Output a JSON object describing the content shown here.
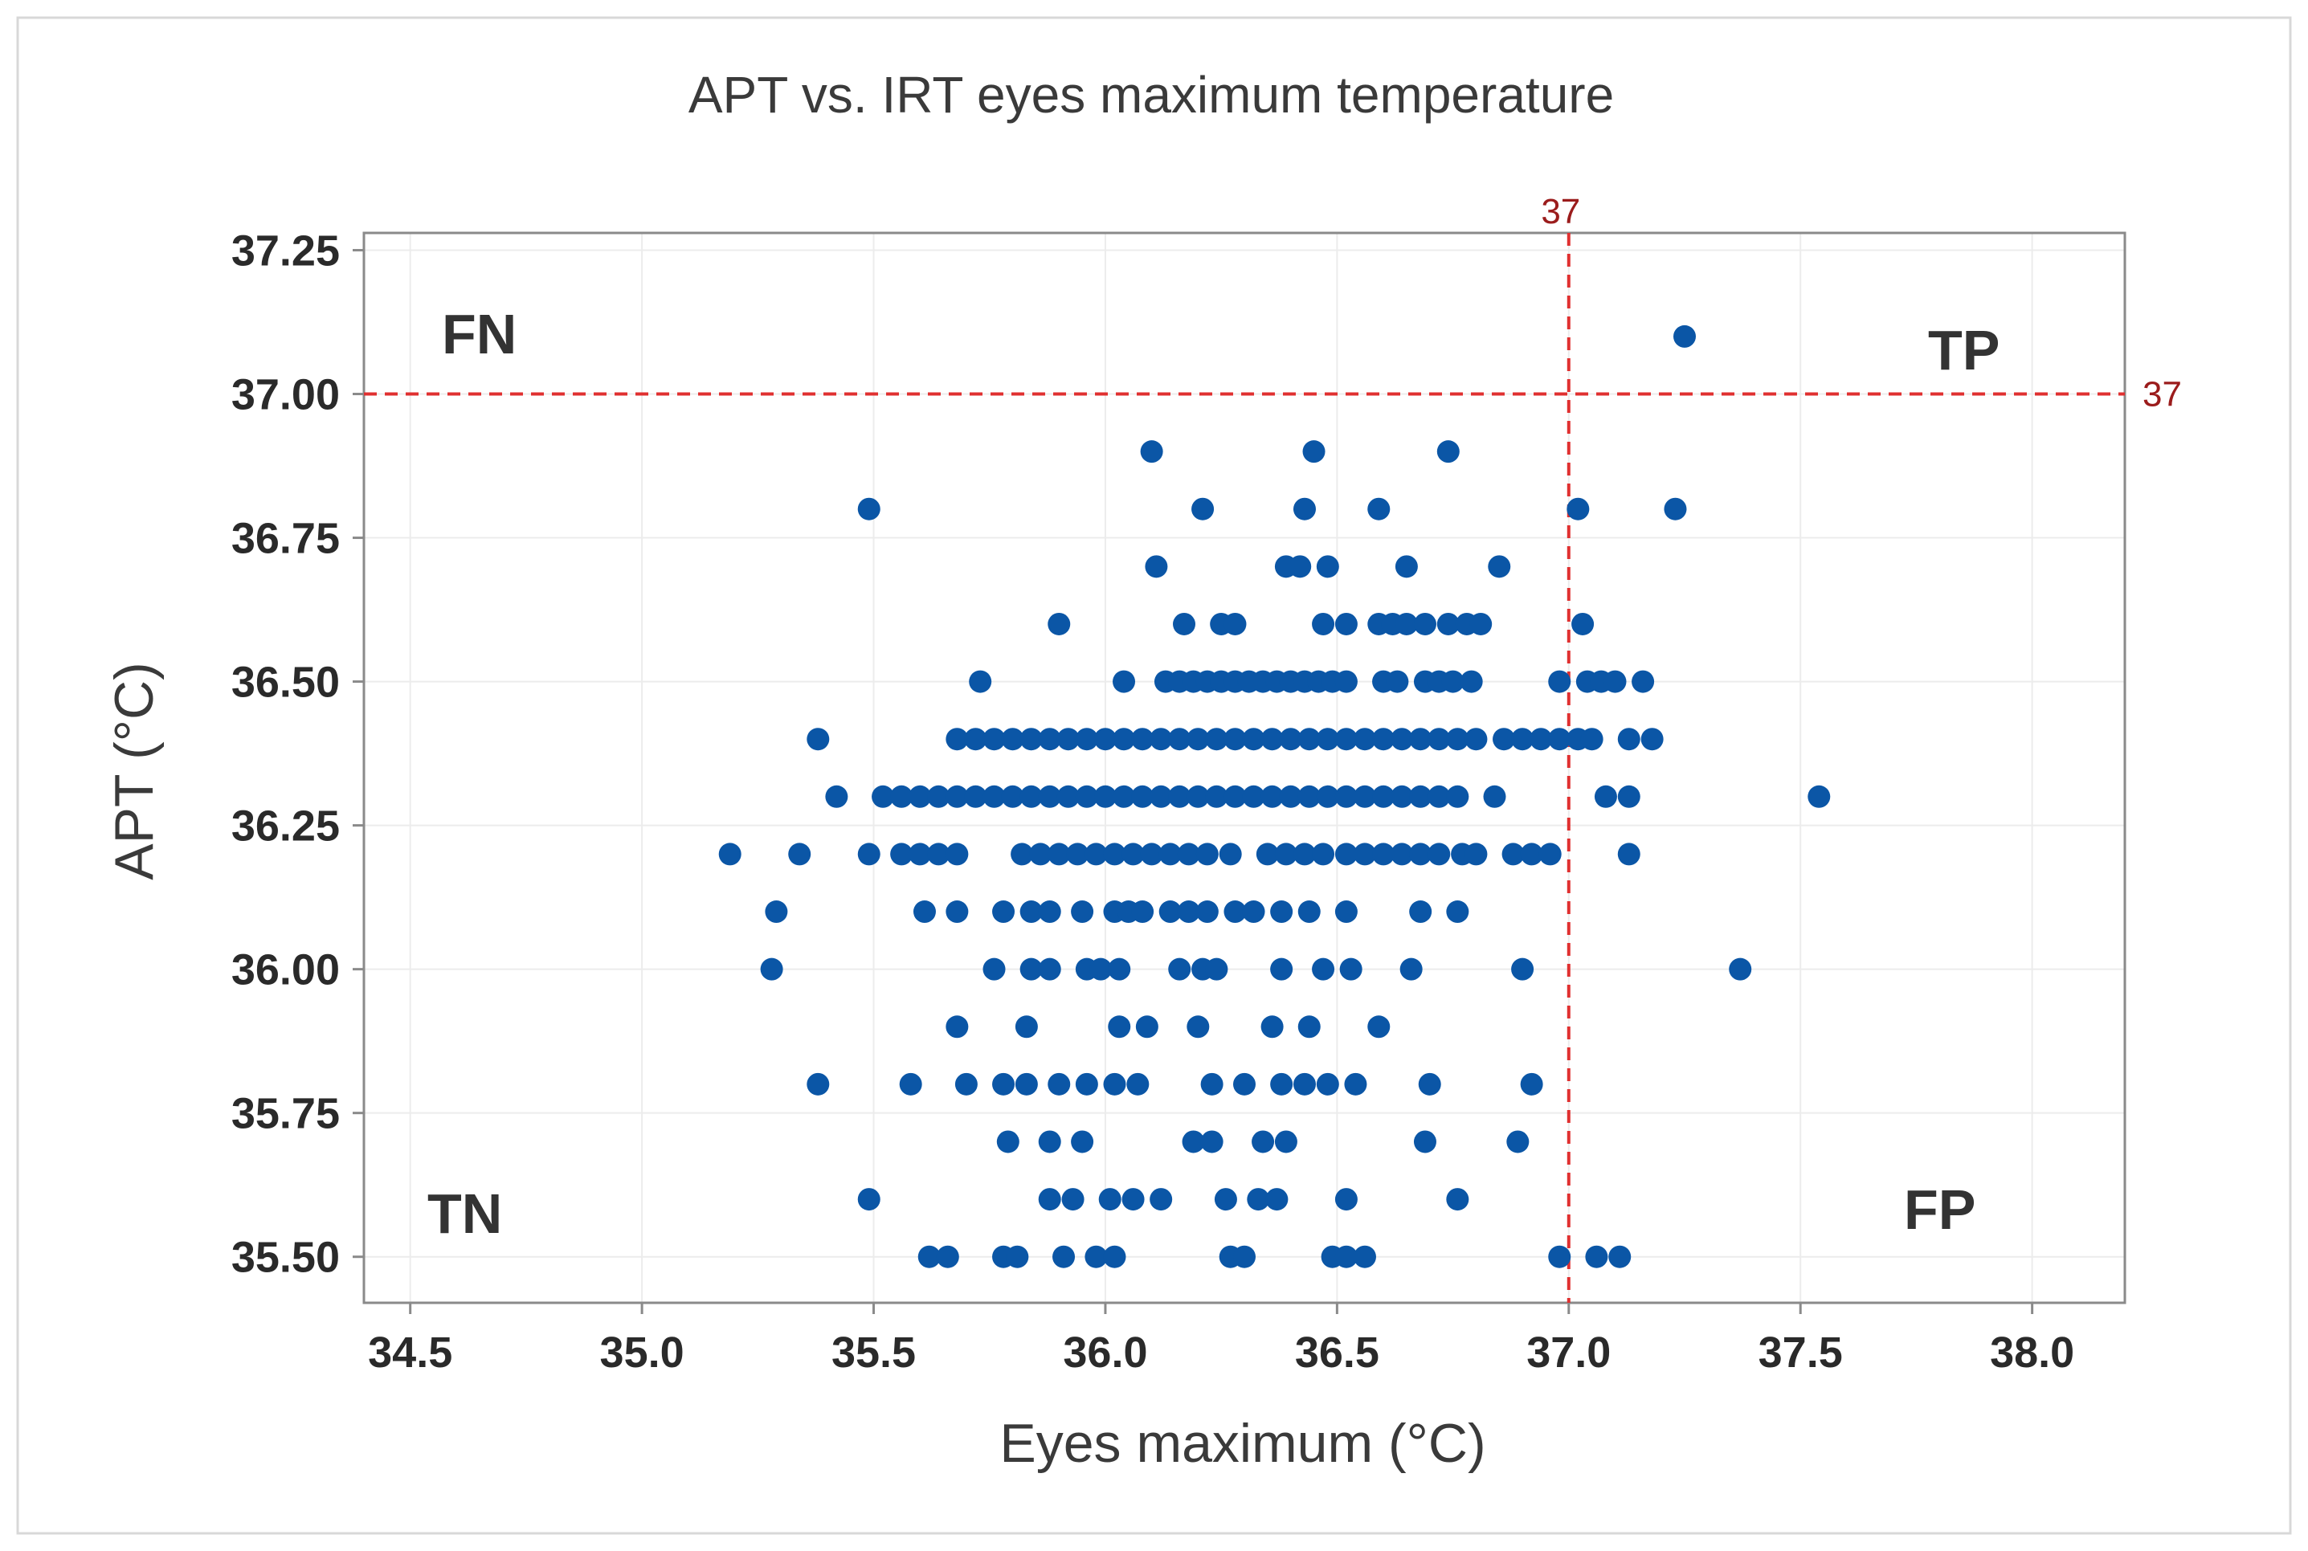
{
  "chart_data": {
    "type": "scatter",
    "title": "APT vs. IRT eyes maximum temperature",
    "xlabel": "Eyes maximum  (°C)",
    "ylabel": "APT (°C)",
    "xlim": [
      34.4,
      38.2
    ],
    "ylim": [
      35.42,
      37.28
    ],
    "x_ticks": [
      34.5,
      35.0,
      35.5,
      36.0,
      36.5,
      37.0,
      37.5,
      38.0
    ],
    "x_tick_labels": [
      "34.5",
      "35.0",
      "35.5",
      "36.0",
      "36.5",
      "37.0",
      "37.5",
      "38.0"
    ],
    "y_ticks": [
      35.5,
      35.75,
      36.0,
      36.25,
      36.5,
      36.75,
      37.0,
      37.25
    ],
    "y_tick_labels": [
      "35.50",
      "35.75",
      "36.00",
      "36.25",
      "36.50",
      "36.75",
      "37.00",
      "37.25"
    ],
    "grid": true,
    "reference_lines": [
      {
        "axis": "x",
        "value": 37,
        "label": "37"
      },
      {
        "axis": "y",
        "value": 37,
        "label": "37"
      }
    ],
    "quadrant_labels": {
      "top_left": "FN",
      "top_right": "TP",
      "bottom_left": "TN",
      "bottom_right": "FP"
    },
    "series": [
      {
        "name": "observations",
        "points": [
          [
            37.25,
            37.1
          ],
          [
            36.1,
            36.9
          ],
          [
            36.45,
            36.9
          ],
          [
            36.74,
            36.9
          ],
          [
            35.49,
            36.8
          ],
          [
            36.21,
            36.8
          ],
          [
            36.43,
            36.8
          ],
          [
            36.59,
            36.8
          ],
          [
            37.02,
            36.8
          ],
          [
            37.23,
            36.8
          ],
          [
            36.11,
            36.7
          ],
          [
            36.39,
            36.7
          ],
          [
            36.42,
            36.7
          ],
          [
            36.48,
            36.7
          ],
          [
            36.65,
            36.7
          ],
          [
            36.85,
            36.7
          ],
          [
            35.9,
            36.6
          ],
          [
            36.17,
            36.6
          ],
          [
            36.25,
            36.6
          ],
          [
            36.28,
            36.6
          ],
          [
            36.47,
            36.6
          ],
          [
            36.52,
            36.6
          ],
          [
            36.59,
            36.6
          ],
          [
            36.62,
            36.6
          ],
          [
            36.65,
            36.6
          ],
          [
            36.69,
            36.6
          ],
          [
            36.74,
            36.6
          ],
          [
            36.78,
            36.6
          ],
          [
            36.81,
            36.6
          ],
          [
            37.03,
            36.6
          ],
          [
            35.73,
            36.5
          ],
          [
            36.04,
            36.5
          ],
          [
            36.13,
            36.5
          ],
          [
            36.16,
            36.5
          ],
          [
            36.19,
            36.5
          ],
          [
            36.22,
            36.5
          ],
          [
            36.25,
            36.5
          ],
          [
            36.28,
            36.5
          ],
          [
            36.31,
            36.5
          ],
          [
            36.34,
            36.5
          ],
          [
            36.37,
            36.5
          ],
          [
            36.4,
            36.5
          ],
          [
            36.43,
            36.5
          ],
          [
            36.46,
            36.5
          ],
          [
            36.49,
            36.5
          ],
          [
            36.52,
            36.5
          ],
          [
            36.6,
            36.5
          ],
          [
            36.63,
            36.5
          ],
          [
            36.69,
            36.5
          ],
          [
            36.72,
            36.5
          ],
          [
            36.75,
            36.5
          ],
          [
            36.79,
            36.5
          ],
          [
            36.98,
            36.5
          ],
          [
            37.04,
            36.5
          ],
          [
            37.07,
            36.5
          ],
          [
            37.1,
            36.5
          ],
          [
            37.16,
            36.5
          ],
          [
            35.38,
            36.4
          ],
          [
            35.68,
            36.4
          ],
          [
            35.72,
            36.4
          ],
          [
            35.76,
            36.4
          ],
          [
            35.8,
            36.4
          ],
          [
            35.84,
            36.4
          ],
          [
            35.88,
            36.4
          ],
          [
            35.92,
            36.4
          ],
          [
            35.96,
            36.4
          ],
          [
            36.0,
            36.4
          ],
          [
            36.04,
            36.4
          ],
          [
            36.08,
            36.4
          ],
          [
            36.12,
            36.4
          ],
          [
            36.16,
            36.4
          ],
          [
            36.2,
            36.4
          ],
          [
            36.24,
            36.4
          ],
          [
            36.28,
            36.4
          ],
          [
            36.32,
            36.4
          ],
          [
            36.36,
            36.4
          ],
          [
            36.4,
            36.4
          ],
          [
            36.44,
            36.4
          ],
          [
            36.48,
            36.4
          ],
          [
            36.52,
            36.4
          ],
          [
            36.56,
            36.4
          ],
          [
            36.6,
            36.4
          ],
          [
            36.64,
            36.4
          ],
          [
            36.68,
            36.4
          ],
          [
            36.72,
            36.4
          ],
          [
            36.76,
            36.4
          ],
          [
            36.8,
            36.4
          ],
          [
            36.86,
            36.4
          ],
          [
            36.9,
            36.4
          ],
          [
            36.94,
            36.4
          ],
          [
            36.98,
            36.4
          ],
          [
            37.02,
            36.4
          ],
          [
            37.05,
            36.4
          ],
          [
            37.13,
            36.4
          ],
          [
            37.18,
            36.4
          ],
          [
            35.42,
            36.3
          ],
          [
            35.52,
            36.3
          ],
          [
            35.56,
            36.3
          ],
          [
            35.6,
            36.3
          ],
          [
            35.64,
            36.3
          ],
          [
            35.68,
            36.3
          ],
          [
            35.72,
            36.3
          ],
          [
            35.76,
            36.3
          ],
          [
            35.8,
            36.3
          ],
          [
            35.84,
            36.3
          ],
          [
            35.88,
            36.3
          ],
          [
            35.92,
            36.3
          ],
          [
            35.96,
            36.3
          ],
          [
            36.0,
            36.3
          ],
          [
            36.04,
            36.3
          ],
          [
            36.08,
            36.3
          ],
          [
            36.12,
            36.3
          ],
          [
            36.16,
            36.3
          ],
          [
            36.2,
            36.3
          ],
          [
            36.24,
            36.3
          ],
          [
            36.28,
            36.3
          ],
          [
            36.32,
            36.3
          ],
          [
            36.36,
            36.3
          ],
          [
            36.4,
            36.3
          ],
          [
            36.44,
            36.3
          ],
          [
            36.48,
            36.3
          ],
          [
            36.52,
            36.3
          ],
          [
            36.56,
            36.3
          ],
          [
            36.6,
            36.3
          ],
          [
            36.64,
            36.3
          ],
          [
            36.68,
            36.3
          ],
          [
            36.72,
            36.3
          ],
          [
            36.76,
            36.3
          ],
          [
            36.84,
            36.3
          ],
          [
            37.08,
            36.3
          ],
          [
            37.13,
            36.3
          ],
          [
            37.54,
            36.3
          ],
          [
            35.19,
            36.2
          ],
          [
            35.34,
            36.2
          ],
          [
            35.49,
            36.2
          ],
          [
            35.56,
            36.2
          ],
          [
            35.6,
            36.2
          ],
          [
            35.64,
            36.2
          ],
          [
            35.68,
            36.2
          ],
          [
            35.82,
            36.2
          ],
          [
            35.86,
            36.2
          ],
          [
            35.9,
            36.2
          ],
          [
            35.94,
            36.2
          ],
          [
            35.98,
            36.2
          ],
          [
            36.02,
            36.2
          ],
          [
            36.06,
            36.2
          ],
          [
            36.1,
            36.2
          ],
          [
            36.14,
            36.2
          ],
          [
            36.18,
            36.2
          ],
          [
            36.22,
            36.2
          ],
          [
            36.27,
            36.2
          ],
          [
            36.35,
            36.2
          ],
          [
            36.39,
            36.2
          ],
          [
            36.43,
            36.2
          ],
          [
            36.47,
            36.2
          ],
          [
            36.52,
            36.2
          ],
          [
            36.56,
            36.2
          ],
          [
            36.6,
            36.2
          ],
          [
            36.64,
            36.2
          ],
          [
            36.68,
            36.2
          ],
          [
            36.72,
            36.2
          ],
          [
            36.77,
            36.2
          ],
          [
            36.8,
            36.2
          ],
          [
            36.88,
            36.2
          ],
          [
            36.92,
            36.2
          ],
          [
            36.96,
            36.2
          ],
          [
            37.13,
            36.2
          ],
          [
            35.29,
            36.1
          ],
          [
            35.61,
            36.1
          ],
          [
            35.68,
            36.1
          ],
          [
            35.78,
            36.1
          ],
          [
            35.84,
            36.1
          ],
          [
            35.88,
            36.1
          ],
          [
            35.95,
            36.1
          ],
          [
            36.02,
            36.1
          ],
          [
            36.05,
            36.1
          ],
          [
            36.08,
            36.1
          ],
          [
            36.14,
            36.1
          ],
          [
            36.18,
            36.1
          ],
          [
            36.22,
            36.1
          ],
          [
            36.28,
            36.1
          ],
          [
            36.32,
            36.1
          ],
          [
            36.38,
            36.1
          ],
          [
            36.44,
            36.1
          ],
          [
            36.52,
            36.1
          ],
          [
            36.68,
            36.1
          ],
          [
            36.76,
            36.1
          ],
          [
            35.28,
            36.0
          ],
          [
            35.76,
            36.0
          ],
          [
            35.84,
            36.0
          ],
          [
            35.88,
            36.0
          ],
          [
            35.96,
            36.0
          ],
          [
            35.99,
            36.0
          ],
          [
            36.03,
            36.0
          ],
          [
            36.16,
            36.0
          ],
          [
            36.21,
            36.0
          ],
          [
            36.24,
            36.0
          ],
          [
            36.38,
            36.0
          ],
          [
            36.47,
            36.0
          ],
          [
            36.53,
            36.0
          ],
          [
            36.66,
            36.0
          ],
          [
            36.9,
            36.0
          ],
          [
            37.37,
            36.0
          ],
          [
            35.68,
            35.9
          ],
          [
            35.83,
            35.9
          ],
          [
            36.03,
            35.9
          ],
          [
            36.09,
            35.9
          ],
          [
            36.2,
            35.9
          ],
          [
            36.36,
            35.9
          ],
          [
            36.44,
            35.9
          ],
          [
            36.59,
            35.9
          ],
          [
            35.38,
            35.8
          ],
          [
            35.58,
            35.8
          ],
          [
            35.7,
            35.8
          ],
          [
            35.78,
            35.8
          ],
          [
            35.83,
            35.8
          ],
          [
            35.9,
            35.8
          ],
          [
            35.96,
            35.8
          ],
          [
            36.02,
            35.8
          ],
          [
            36.07,
            35.8
          ],
          [
            36.23,
            35.8
          ],
          [
            36.3,
            35.8
          ],
          [
            36.38,
            35.8
          ],
          [
            36.43,
            35.8
          ],
          [
            36.48,
            35.8
          ],
          [
            36.54,
            35.8
          ],
          [
            36.7,
            35.8
          ],
          [
            36.92,
            35.8
          ],
          [
            35.79,
            35.7
          ],
          [
            35.88,
            35.7
          ],
          [
            35.95,
            35.7
          ],
          [
            36.19,
            35.7
          ],
          [
            36.23,
            35.7
          ],
          [
            36.34,
            35.7
          ],
          [
            36.39,
            35.7
          ],
          [
            36.69,
            35.7
          ],
          [
            36.89,
            35.7
          ],
          [
            35.49,
            35.6
          ],
          [
            35.88,
            35.6
          ],
          [
            35.93,
            35.6
          ],
          [
            36.01,
            35.6
          ],
          [
            36.06,
            35.6
          ],
          [
            36.12,
            35.6
          ],
          [
            36.26,
            35.6
          ],
          [
            36.33,
            35.6
          ],
          [
            36.37,
            35.6
          ],
          [
            36.52,
            35.6
          ],
          [
            36.76,
            35.6
          ],
          [
            35.62,
            35.5
          ],
          [
            35.66,
            35.5
          ],
          [
            35.78,
            35.5
          ],
          [
            35.81,
            35.5
          ],
          [
            35.91,
            35.5
          ],
          [
            35.98,
            35.5
          ],
          [
            36.02,
            35.5
          ],
          [
            36.27,
            35.5
          ],
          [
            36.3,
            35.5
          ],
          [
            36.49,
            35.5
          ],
          [
            36.52,
            35.5
          ],
          [
            36.56,
            35.5
          ],
          [
            36.98,
            35.5
          ],
          [
            37.06,
            35.5
          ],
          [
            37.11,
            35.5
          ]
        ]
      }
    ],
    "colors": {
      "point": "#0b56a6",
      "reference_line": "#e03030",
      "reference_label": "#9b1c1c",
      "grid": "#ececec",
      "frame": "#8a8a8a"
    }
  }
}
